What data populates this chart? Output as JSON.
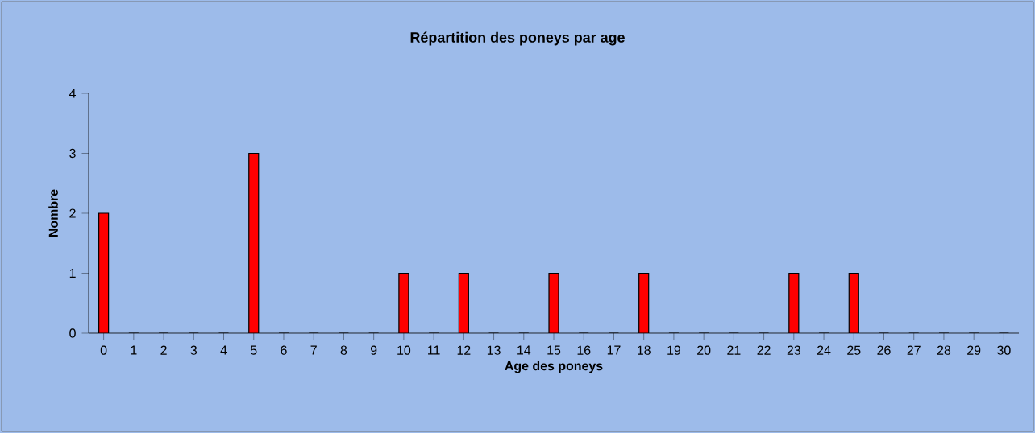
{
  "chart_data": {
    "type": "bar",
    "title": "Répartition des poneys par age",
    "xlabel": "Age des poneys",
    "ylabel": "Nombre",
    "categories": [
      "0",
      "1",
      "2",
      "3",
      "4",
      "5",
      "6",
      "7",
      "8",
      "9",
      "10",
      "11",
      "12",
      "13",
      "14",
      "15",
      "16",
      "17",
      "18",
      "19",
      "20",
      "21",
      "22",
      "23",
      "24",
      "25",
      "26",
      "27",
      "28",
      "29",
      "30"
    ],
    "values": [
      2,
      0,
      0,
      0,
      0,
      3,
      0,
      0,
      0,
      0,
      1,
      0,
      1,
      0,
      0,
      1,
      0,
      0,
      1,
      0,
      0,
      0,
      0,
      1,
      0,
      1,
      0,
      0,
      0,
      0,
      0
    ],
    "color": "#ff0000",
    "ylim": [
      0,
      4
    ],
    "yticks": [
      0,
      1,
      2,
      3,
      4
    ]
  }
}
